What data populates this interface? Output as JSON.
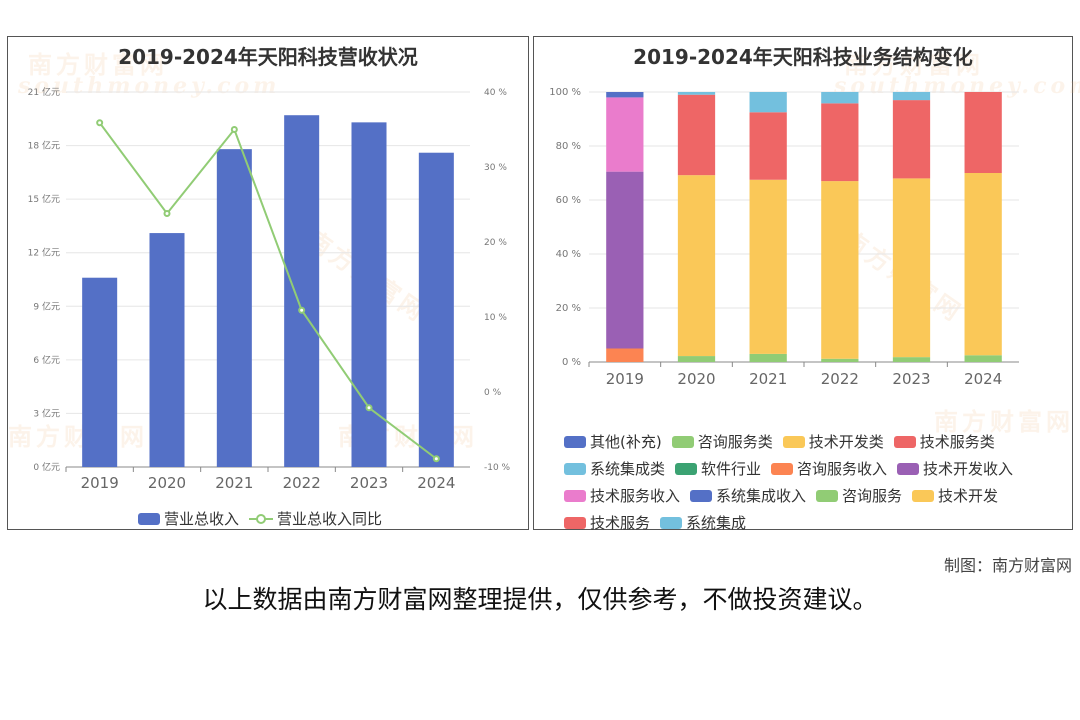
{
  "left_chart": {
    "title": "2019-2024年天阳科技营收状况",
    "left_axis_ticks": [
      "0 亿元",
      "3 亿元",
      "6 亿元",
      "9 亿元",
      "12 亿元",
      "15 亿元",
      "18 亿元",
      "21 亿元"
    ],
    "right_axis_ticks": [
      "-10 %",
      "0 %",
      "10 %",
      "20 %",
      "30 %",
      "40 %"
    ],
    "legend": [
      "营业总收入",
      "营业总收入同比"
    ]
  },
  "right_chart": {
    "title": "2019-2024年天阳科技业务结构变化",
    "y_axis_ticks": [
      "0 %",
      "20 %",
      "40 %",
      "60 %",
      "80 %",
      "100 %"
    ],
    "legend_rows": [
      [
        "其他(补充)",
        "咨询服务类",
        "技术开发类",
        "技术服务类"
      ],
      [
        "系统集成类",
        "软件行业",
        "咨询服务收入",
        "技术开发收入"
      ],
      [
        "技术服务收入",
        "系统集成收入",
        "咨询服务",
        "技术开发"
      ],
      [
        "技术服务",
        "系统集成"
      ]
    ]
  },
  "watermark_text": "南方财富网",
  "watermark_sub": "southmoney.com",
  "maker": "制图：南方财富网",
  "disclaimer": "以上数据由南方财富网整理提供，仅供参考，不做投资建议。",
  "chart_data": [
    {
      "type": "bar",
      "title": "2019-2024年天阳科技营收状况",
      "categories": [
        "2019",
        "2020",
        "2021",
        "2022",
        "2023",
        "2024"
      ],
      "series": [
        {
          "name": "营业总收入",
          "axis": "left",
          "unit": "亿元",
          "color": "#5470c6",
          "values": [
            10.6,
            13.1,
            17.8,
            19.7,
            19.3,
            17.6
          ]
        },
        {
          "name": "营业总收入同比",
          "axis": "right",
          "unit": "%",
          "type": "line",
          "color": "#91cc75",
          "values": [
            35.9,
            23.8,
            35.0,
            10.9,
            -2.1,
            -8.9
          ]
        }
      ],
      "ylim_left": [
        0,
        21
      ],
      "ylim_right": [
        -10,
        40
      ],
      "legend_position": "bottom"
    },
    {
      "type": "bar",
      "stacked": true,
      "title": "2019-2024年天阳科技业务结构变化",
      "categories": [
        "2019",
        "2020",
        "2021",
        "2022",
        "2023",
        "2024"
      ],
      "ylim": [
        0,
        100
      ],
      "series": [
        {
          "name": "其他(补充)",
          "color": "#5470c6",
          "values": [
            0,
            0,
            0,
            0,
            0,
            0
          ]
        },
        {
          "name": "咨询服务类",
          "color": "#91cc75",
          "values": [
            0,
            0,
            0,
            0,
            0,
            0
          ]
        },
        {
          "name": "技术开发类",
          "color": "#fac858",
          "values": [
            0,
            0,
            0,
            0,
            0,
            0
          ]
        },
        {
          "name": "技术服务类",
          "color": "#ee6666",
          "values": [
            0,
            0,
            0,
            0,
            0,
            0
          ]
        },
        {
          "name": "系统集成类",
          "color": "#73c0de",
          "values": [
            0,
            0,
            0,
            0,
            0,
            0
          ]
        },
        {
          "name": "软件行业",
          "color": "#3ba272",
          "values": [
            0,
            0,
            0,
            0,
            0,
            0
          ]
        },
        {
          "name": "咨询服务收入",
          "color": "#fc8452",
          "values": [
            5.0,
            0,
            0,
            0,
            0,
            0
          ]
        },
        {
          "name": "技术开发收入",
          "color": "#9a60b4",
          "values": [
            65.5,
            0,
            0,
            0,
            0,
            0
          ]
        },
        {
          "name": "技术服务收入",
          "color": "#ea7ccc",
          "values": [
            27.5,
            0,
            0,
            0,
            0,
            0
          ]
        },
        {
          "name": "系统集成收入",
          "color": "#5470c6",
          "values": [
            2.0,
            0,
            0,
            0,
            0,
            0
          ]
        },
        {
          "name": "咨询服务",
          "color": "#91cc75",
          "values": [
            0,
            2.2,
            3.0,
            1.2,
            1.8,
            2.5
          ]
        },
        {
          "name": "技术开发",
          "color": "#fac858",
          "values": [
            0,
            67.0,
            64.5,
            65.8,
            66.2,
            67.5
          ]
        },
        {
          "name": "技术服务",
          "color": "#ee6666",
          "values": [
            0,
            29.8,
            25.0,
            28.8,
            29.0,
            30.0
          ]
        },
        {
          "name": "系统集成",
          "color": "#73c0de",
          "values": [
            0,
            1.0,
            7.5,
            4.2,
            3.0,
            0
          ]
        }
      ],
      "legend_position": "bottom"
    }
  ]
}
